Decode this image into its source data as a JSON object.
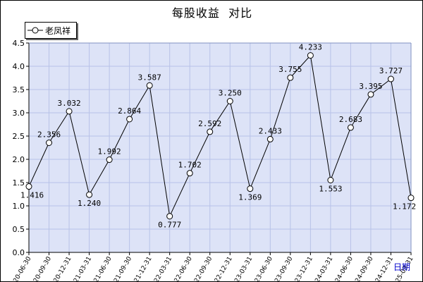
{
  "colors": {
    "plot_background": "#dde3f7",
    "grid": "#b8c2e8",
    "line": "#000000",
    "marker_fill": "#ffffff"
  },
  "chart_data": {
    "type": "line",
    "title": "每股收益  对比",
    "xlabel": "日期",
    "ylabel": "",
    "legend_position": "top-left",
    "grid": true,
    "ylim": [
      0,
      4.5
    ],
    "yticks": [
      "0.0",
      "0.5",
      "1.0",
      "1.5",
      "2.0",
      "2.5",
      "3.0",
      "3.5",
      "4.0",
      "4.5"
    ],
    "categories": [
      "2020-06-30",
      "2020-09-30",
      "2020-12-31",
      "2021-03-31",
      "2021-06-30",
      "2021-09-30",
      "2021-12-31",
      "2022-03-31",
      "2022-06-30",
      "2022-09-30",
      "2022-12-31",
      "2023-03-31",
      "2023-06-30",
      "2023-09-30",
      "2023-12-31",
      "2024-03-31",
      "2024-06-30",
      "2024-09-30",
      "2024-12-31",
      "2025-03-31"
    ],
    "series": [
      {
        "name": "老凤祥",
        "values": [
          1.416,
          2.356,
          3.032,
          1.24,
          1.992,
          2.864,
          3.587,
          0.777,
          1.702,
          2.592,
          3.25,
          1.369,
          2.433,
          3.755,
          4.233,
          1.553,
          2.683,
          3.395,
          3.727,
          1.172
        ],
        "labels": [
          "1.416",
          "2.356",
          "3.032",
          "1.240",
          "1.992",
          "2.864",
          "3.587",
          "0.777",
          "1.702",
          "2.592",
          "3.250",
          "1.369",
          "2.433",
          "3.755",
          "4.233",
          "1.553",
          "2.683",
          "3.395",
          "3.727",
          "1.172"
        ]
      }
    ]
  }
}
